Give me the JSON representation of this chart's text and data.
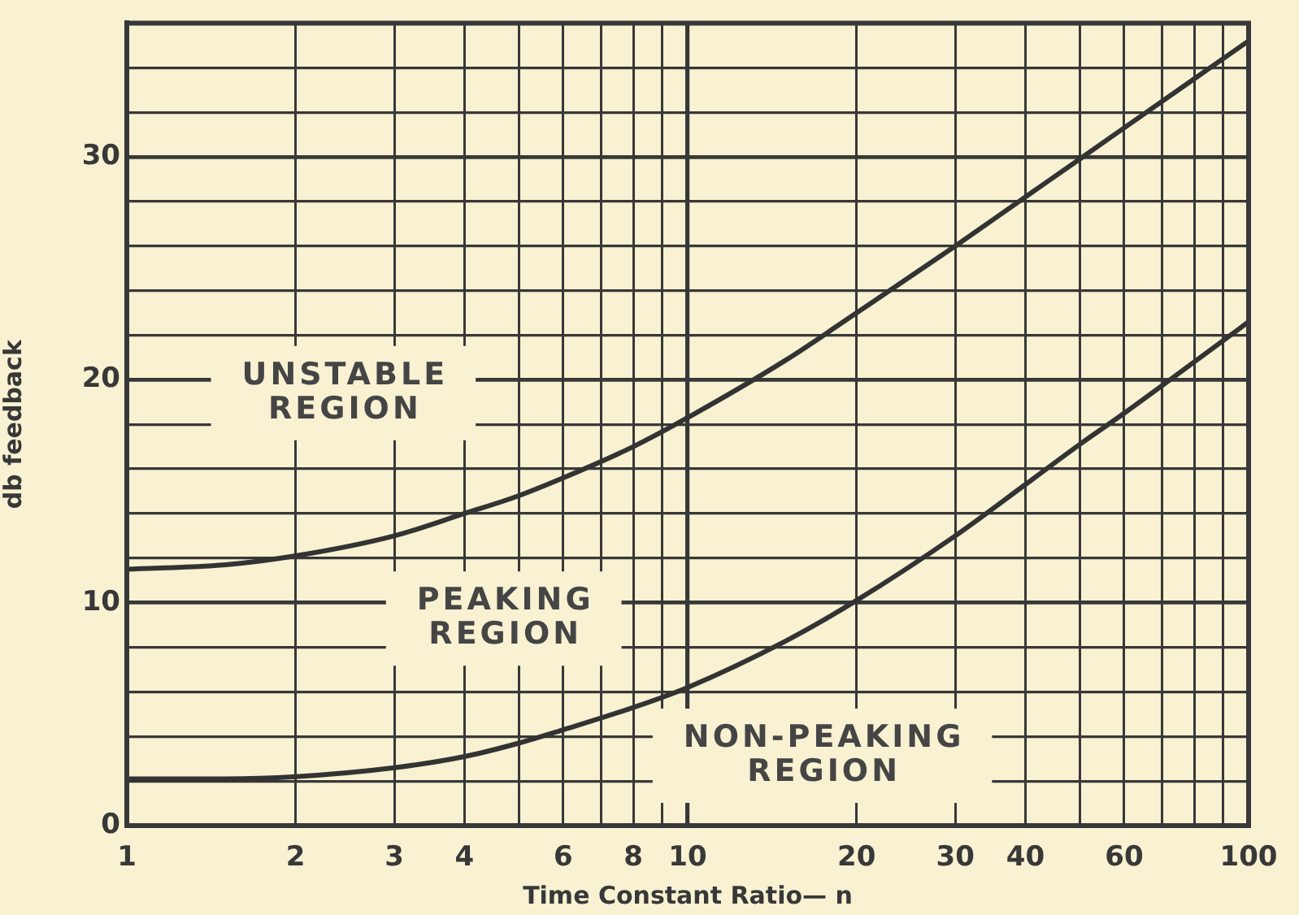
{
  "chart_data": {
    "type": "line",
    "xlabel": "Time Constant Ratio— n",
    "ylabel": "db feedback",
    "x": [
      1,
      1.5,
      2,
      3,
      4,
      5,
      6,
      8,
      10,
      15,
      20,
      30,
      40,
      50,
      60,
      80,
      100
    ],
    "series": [
      {
        "color": "#333333",
        "values": [
          11.5,
          11.7,
          12.1,
          13.0,
          14.0,
          14.8,
          15.6,
          17.0,
          18.3,
          20.9,
          23.0,
          26.0,
          28.2,
          29.9,
          31.3,
          33.5,
          35.2
        ]
      },
      {
        "color": "#333333",
        "values": [
          2.1,
          2.1,
          2.2,
          2.6,
          3.1,
          3.7,
          4.3,
          5.3,
          6.2,
          8.3,
          10.1,
          13.0,
          15.3,
          17.1,
          18.5,
          20.8,
          22.6
        ]
      }
    ],
    "xlim": [
      1,
      100
    ],
    "ylim": [
      0,
      36
    ],
    "xticks": [
      1,
      2,
      3,
      4,
      {
        "value": 5,
        "label": null
      },
      6,
      {
        "value": 7,
        "label": null
      },
      8,
      {
        "value": 9,
        "label": null
      },
      10,
      20,
      30,
      40,
      {
        "value": 50,
        "label": null
      },
      60,
      {
        "value": 70,
        "label": null
      },
      {
        "value": 80,
        "label": null
      },
      {
        "value": 90,
        "label": null
      },
      100
    ],
    "yticks": [
      0,
      {
        "value": 2,
        "label": null
      },
      {
        "value": 4,
        "label": null
      },
      {
        "value": 6,
        "label": null
      },
      {
        "value": 8,
        "label": null
      },
      10,
      {
        "value": 12,
        "label": null
      },
      {
        "value": 14,
        "label": null
      },
      {
        "value": 16,
        "label": null
      },
      {
        "value": 18,
        "label": null
      },
      20,
      {
        "value": 22,
        "label": null
      },
      {
        "value": 24,
        "label": null
      },
      {
        "value": 26,
        "label": null
      },
      {
        "value": 28,
        "label": null
      },
      30,
      {
        "value": 32,
        "label": null
      },
      {
        "value": 34,
        "label": null
      },
      {
        "value": 36,
        "label": null
      }
    ],
    "log": "x",
    "grid": true,
    "legend": false,
    "marker": "none",
    "line_style": "solid",
    "annotations": [
      "UNSTABLE REGION",
      "PEAKING REGION",
      "NON-PEAKING REGION"
    ]
  }
}
